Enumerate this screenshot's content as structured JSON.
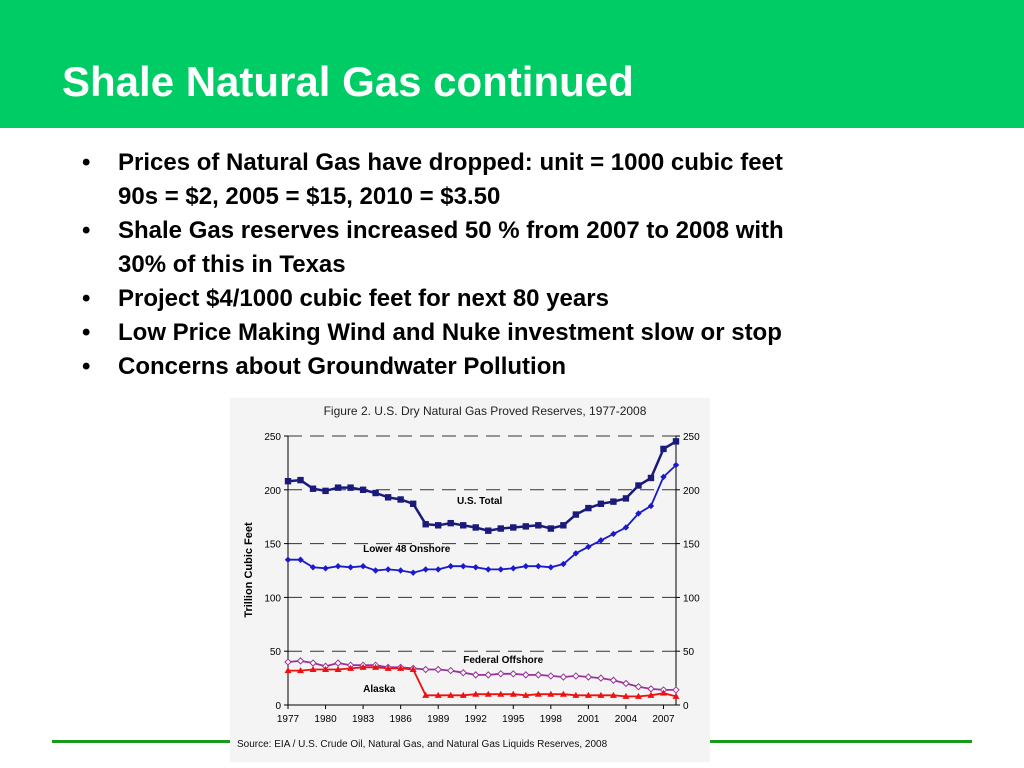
{
  "slide": {
    "title": "Shale Natural Gas continued",
    "bullets": [
      {
        "line1": "Prices of Natural Gas have dropped: unit = 1000 cubic feet",
        "line2": "90s = $2, 2005 = $15, 2010 = $3.50"
      },
      {
        "line1": "Shale Gas reserves increased 50 % from 2007 to 2008 with",
        "line2": "30% of this in Texas"
      },
      {
        "line1": "Project $4/1000 cubic feet for next 80 years",
        "line2": ""
      },
      {
        "line1": "Low Price Making Wind and Nuke investment slow or stop",
        "line2": ""
      },
      {
        "line1": "Concerns about Groundwater Pollution",
        "line2": ""
      }
    ],
    "colors": {
      "title_bar": "#00cc66",
      "title_text": "#ffffff",
      "footer_line": "#1a9a1a"
    }
  },
  "chart_data": {
    "type": "line",
    "title": "Figure 2. U.S. Dry Natural Gas Proved Reserves, 1977-2008",
    "ylabel": "Trillion Cubic Feet",
    "xlabel": "",
    "source": "Source: EIA / U.S. Crude Oil, Natural Gas, and Natural Gas Liquids Reserves, 2008",
    "x": [
      1977,
      1978,
      1979,
      1980,
      1981,
      1982,
      1983,
      1984,
      1985,
      1986,
      1987,
      1988,
      1989,
      1990,
      1991,
      1992,
      1993,
      1994,
      1995,
      1996,
      1997,
      1998,
      1999,
      2000,
      2001,
      2002,
      2003,
      2004,
      2005,
      2006,
      2007,
      2008
    ],
    "xticks": [
      1977,
      1980,
      1983,
      1986,
      1989,
      1992,
      1995,
      1998,
      2001,
      2004,
      2007
    ],
    "xlim": [
      1977,
      2008
    ],
    "ylim": [
      0,
      250
    ],
    "yticks": [
      0,
      50,
      100,
      150,
      200,
      250
    ],
    "grid": "dashed horizontal",
    "series": [
      {
        "name": "U.S. Total",
        "color": "#1a1a7a",
        "marker": "square",
        "values": [
          208,
          209,
          201,
          199,
          202,
          202,
          200,
          197,
          193,
          191,
          187,
          168,
          167,
          169,
          167,
          165,
          162,
          164,
          165,
          166,
          167,
          164,
          167,
          177,
          183,
          187,
          189,
          192,
          204,
          211,
          238,
          245
        ]
      },
      {
        "name": "Lower 48 Onshore",
        "color": "#1a1acc",
        "marker": "diamond",
        "values": [
          135,
          135,
          128,
          127,
          129,
          128,
          129,
          125,
          126,
          125,
          123,
          126,
          126,
          129,
          129,
          128,
          126,
          126,
          127,
          129,
          129,
          128,
          131,
          141,
          147,
          153,
          159,
          165,
          178,
          185,
          212,
          223
        ]
      },
      {
        "name": "Federal Offshore",
        "color": "#993399",
        "marker": "open-diamond",
        "values": [
          40,
          41,
          39,
          36,
          39,
          37,
          37,
          37,
          35,
          35,
          34,
          33,
          33,
          32,
          30,
          28,
          28,
          29,
          29,
          28,
          28,
          27,
          26,
          27,
          26,
          25,
          23,
          20,
          17,
          15,
          14,
          14
        ]
      },
      {
        "name": "Alaska",
        "color": "#ee1111",
        "marker": "triangle",
        "values": [
          32,
          32,
          33,
          33,
          33,
          34,
          35,
          35,
          34,
          34,
          33,
          9,
          9,
          9,
          9,
          10,
          10,
          10,
          10,
          9,
          10,
          10,
          10,
          9,
          9,
          9,
          9,
          8,
          8,
          9,
          11,
          8
        ]
      }
    ],
    "series_labels": [
      "U.S. Total",
      "Lower 48 Onshore",
      "Federal Offshore",
      "Alaska"
    ]
  }
}
